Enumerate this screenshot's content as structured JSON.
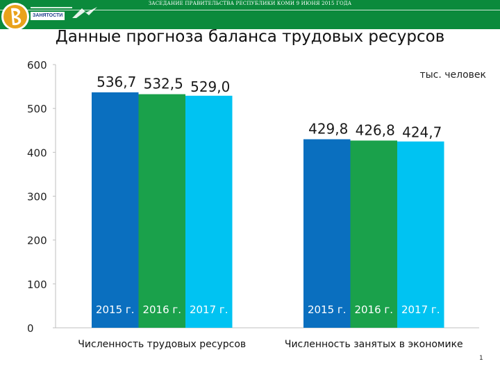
{
  "header": {
    "meeting_text": "ЗАСЕДАНИЕ ПРАВИТЕЛЬСТВА РЕСПУБЛИКИ КОМИ 9 ИЮНЯ 2015 ГОДА",
    "logo_text": "ЗАНЯТОСТИ",
    "logo_fine_text": "ЦЕНТР ЗАНЯТОСТИ",
    "header_color": "#0b8a3c"
  },
  "slide": {
    "title": "Данные прогноза баланса трудовых ресурсов",
    "page_number": "1"
  },
  "chart_data": {
    "type": "bar",
    "title": "",
    "unit_label": "тыс. человек",
    "categories": [
      "Численность трудовых ресурсов",
      "Численность занятых в экономике"
    ],
    "series": [
      {
        "name": "2015 г.",
        "color": "#0a6fbf",
        "values": [
          536.7,
          429.8
        ],
        "labels": [
          "536,7",
          "429,8"
        ]
      },
      {
        "name": "2016 г.",
        "color": "#1aa14b",
        "values": [
          532.5,
          426.8
        ],
        "labels": [
          "532,5",
          "426,8"
        ]
      },
      {
        "name": "2017 г.",
        "color": "#00c3f2",
        "values": [
          529.0,
          424.7
        ],
        "labels": [
          "529,0",
          "424,7"
        ]
      }
    ],
    "ylim": [
      0,
      600
    ],
    "yticks": [
      0,
      100,
      200,
      300,
      400,
      500,
      600
    ],
    "grid": false,
    "legend": "none"
  }
}
